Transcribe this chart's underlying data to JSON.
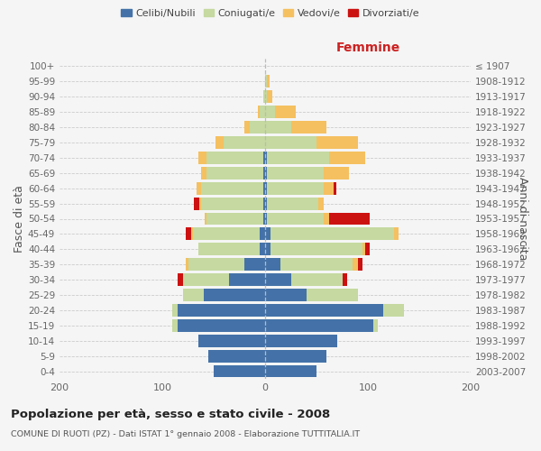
{
  "age_groups": [
    "0-4",
    "5-9",
    "10-14",
    "15-19",
    "20-24",
    "25-29",
    "30-34",
    "35-39",
    "40-44",
    "45-49",
    "50-54",
    "55-59",
    "60-64",
    "65-69",
    "70-74",
    "75-79",
    "80-84",
    "85-89",
    "90-94",
    "95-99",
    "100+"
  ],
  "birth_years": [
    "2003-2007",
    "1998-2002",
    "1993-1997",
    "1988-1992",
    "1983-1987",
    "1978-1982",
    "1973-1977",
    "1968-1972",
    "1963-1967",
    "1958-1962",
    "1953-1957",
    "1948-1952",
    "1943-1947",
    "1938-1942",
    "1933-1937",
    "1928-1932",
    "1923-1927",
    "1918-1922",
    "1913-1917",
    "1908-1912",
    "≤ 1907"
  ],
  "male": {
    "celibi": [
      50,
      55,
      65,
      85,
      85,
      60,
      35,
      20,
      5,
      5,
      2,
      2,
      2,
      2,
      2,
      0,
      0,
      0,
      0,
      0,
      0
    ],
    "coniugati": [
      0,
      0,
      0,
      5,
      5,
      20,
      45,
      55,
      60,
      65,
      55,
      60,
      60,
      55,
      55,
      40,
      15,
      5,
      2,
      0,
      0
    ],
    "vedovi": [
      0,
      0,
      0,
      0,
      0,
      0,
      0,
      2,
      0,
      2,
      2,
      2,
      5,
      5,
      8,
      8,
      5,
      2,
      0,
      0,
      0
    ],
    "divorziati": [
      0,
      0,
      0,
      0,
      0,
      0,
      5,
      0,
      0,
      5,
      0,
      5,
      0,
      0,
      0,
      0,
      0,
      0,
      0,
      0,
      0
    ]
  },
  "female": {
    "nubili": [
      50,
      60,
      70,
      105,
      115,
      40,
      25,
      15,
      5,
      5,
      2,
      2,
      2,
      2,
      2,
      0,
      0,
      0,
      0,
      0,
      0
    ],
    "coniugate": [
      0,
      0,
      0,
      5,
      20,
      50,
      50,
      70,
      90,
      120,
      55,
      50,
      55,
      55,
      60,
      50,
      25,
      10,
      2,
      2,
      0
    ],
    "vedove": [
      0,
      0,
      0,
      0,
      0,
      0,
      0,
      5,
      2,
      5,
      5,
      5,
      10,
      25,
      35,
      40,
      35,
      20,
      5,
      2,
      0
    ],
    "divorziate": [
      0,
      0,
      0,
      0,
      0,
      0,
      5,
      5,
      5,
      0,
      40,
      0,
      2,
      0,
      0,
      0,
      0,
      0,
      0,
      0,
      0
    ]
  },
  "colors": {
    "celibi": "#4472a8",
    "coniugati": "#c5d9a0",
    "vedovi": "#f5c060",
    "divorziati": "#cc1111"
  },
  "title": "Popolazione per età, sesso e stato civile - 2008",
  "subtitle": "COMUNE DI RUOTI (PZ) - Dati ISTAT 1° gennaio 2008 - Elaborazione TUTTITALIA.IT",
  "ylabel_left": "Fasce di età",
  "ylabel_right": "Anni di nascita",
  "xlabel_right": "Femmine",
  "xlim": 200,
  "legend_labels": [
    "Celibi/Nubili",
    "Coniugati/e",
    "Vedovi/e",
    "Divorziati/e"
  ],
  "bg_color": "#f5f5f5"
}
